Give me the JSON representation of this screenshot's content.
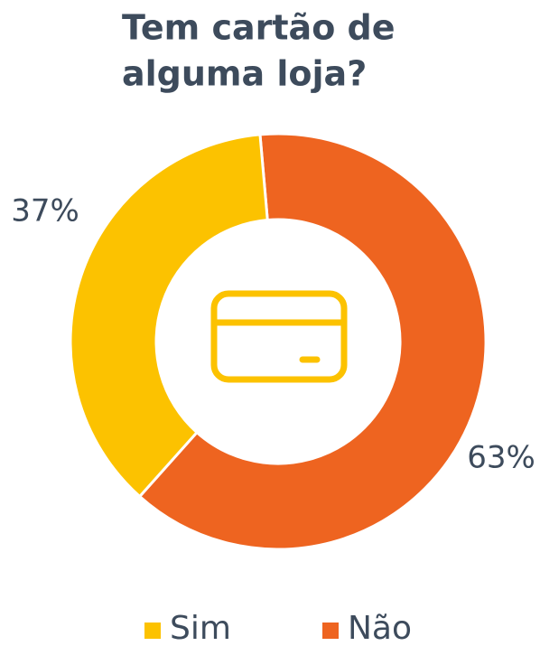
{
  "chart_data": {
    "type": "donut",
    "title": [
      "Tem cartão de",
      "alguma loja?"
    ],
    "categories": [
      "Sim",
      "Não"
    ],
    "values": [
      37,
      63
    ],
    "value_labels": [
      "37%",
      "63%"
    ],
    "colors": [
      "#fcc200",
      "#ee6420"
    ],
    "legend": "bottom"
  }
}
